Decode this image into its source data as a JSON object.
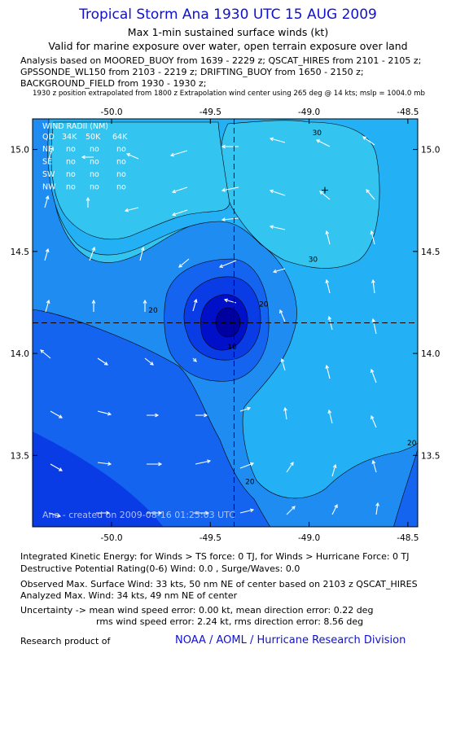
{
  "title": "Tropical Storm Ana 1930 UTC 15 AUG 2009",
  "subtitle1": "Max 1-min sustained surface winds (kt)",
  "subtitle2": "Valid for marine exposure over water, open terrain exposure over land",
  "analysis_lines": [
    "Analysis based on  MOORED_BUOY from 1639 - 2229 z;  QSCAT_HIRES from 2101 - 2105 z;",
    "GPSSONDE_WL150 from 2103 - 2219 z;  DRIFTING_BUOY from 1650 - 2150 z;",
    "BACKGROUND_FIELD from 1930 - 1930 z;"
  ],
  "position_note": "1930 z position extrapolated from 1800 z Extrapolation wind center using 265 deg @ 14 kts; mslp = 1004.0 mb",
  "colors": {
    "title": "#1010d0",
    "c_lt": "#33c4f0",
    "c_mid1": "#1e8cf0",
    "c_mid2": "#1464f0",
    "c_dark1": "#0a3ce6",
    "c_dark2": "#0010c8",
    "c_core": "#0000a0"
  },
  "wind_radii": {
    "title": "WIND RADII (NM)",
    "header": [
      "QD",
      "34K",
      "50K",
      "64K"
    ],
    "rows": [
      [
        "NE",
        "no",
        "no",
        "no"
      ],
      [
        "SE",
        "no",
        "no",
        "no"
      ],
      [
        "SW",
        "no",
        "no",
        "no"
      ],
      [
        "NW",
        "no",
        "no",
        "no"
      ]
    ]
  },
  "created": "Ana - created on 2009-08-16 01:25:03 UTC",
  "chart_data": {
    "type": "heatmap",
    "description_type": "wind speed contour map",
    "x_ticks": [
      "-50.0",
      "-49.5",
      "-49.0",
      "-48.5"
    ],
    "y_ticks": [
      "15.0",
      "14.5",
      "14.0",
      "13.5"
    ],
    "xlim": [
      -50.4,
      -48.45
    ],
    "ylim": [
      13.15,
      15.15
    ],
    "storm_center": {
      "lon": -49.38,
      "lat": 14.15
    },
    "max_wind_marker": {
      "lon": -48.92,
      "lat": 14.8
    },
    "contour_labels": [
      {
        "text": "30",
        "lon": -48.96,
        "lat": 15.07
      },
      {
        "text": "30",
        "lon": -48.98,
        "lat": 14.45
      },
      {
        "text": "20",
        "lon": -49.79,
        "lat": 14.2
      },
      {
        "text": "20",
        "lon": -49.23,
        "lat": 14.23
      },
      {
        "text": "20",
        "lon": -48.48,
        "lat": 13.55
      },
      {
        "text": "20",
        "lon": -49.3,
        "lat": 13.36
      },
      {
        "text": "10",
        "lon": -49.39,
        "lat": 14.02
      }
    ],
    "contour_levels": [
      10,
      20,
      30
    ]
  },
  "footer": {
    "ike": "Integrated Kinetic Energy:  for Winds > TS force: 0 TJ,  for Winds > Hurricane Force: 0 TJ",
    "dpr": "Destructive Potential Rating(0-6)   Wind: 0.0 , Surge/Waves: 0.0",
    "obs": "Observed Max. Surface Wind: 33 kts, 50 nm NE of center based on 2103 z QSCAT_HIRES",
    "analyzed": "Analyzed Max. Wind: 34 kts, 49 nm NE of center",
    "unc1": "Uncertainty -> mean wind speed error: 0.00 kt,   mean direction error: 0.22 deg",
    "unc2": "rms wind speed error: 2.24 kt,   rms direction error: 8.56 deg",
    "research": "Research product of",
    "org": "NOAA / AOML / Hurricane Research Division"
  }
}
